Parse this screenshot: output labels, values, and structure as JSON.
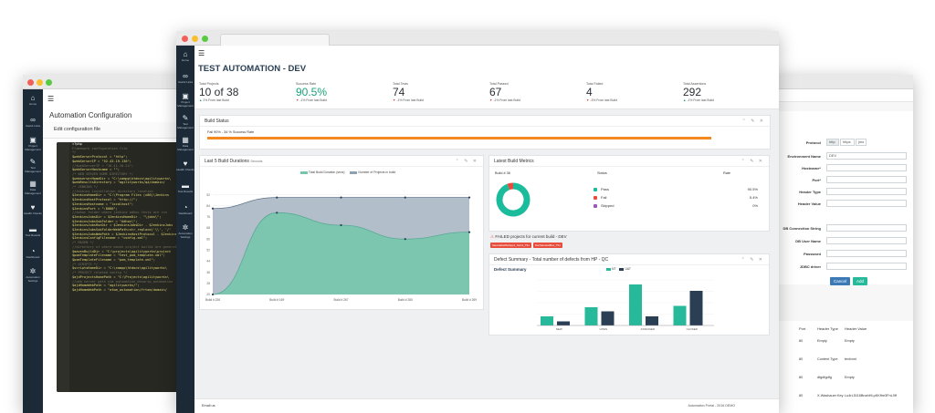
{
  "left_window": {
    "title": "Automation Configuration",
    "subtitle": "Edit configuration file",
    "sidebar": [
      {
        "icon": "home-icon",
        "label": "Home"
      },
      {
        "icon": "link-icon",
        "label": "Useful Links"
      },
      {
        "icon": "briefcase-icon",
        "label": "Project Management"
      },
      {
        "icon": "wrench-icon",
        "label": "Test Management"
      },
      {
        "icon": "table-icon",
        "label": "Data Management"
      },
      {
        "icon": "heart-icon",
        "label": "Health Checks"
      },
      {
        "icon": "folder-icon",
        "label": "Test Results"
      },
      {
        "icon": "dashboard-icon",
        "label": "Dashboard"
      },
      {
        "icon": "gears-icon",
        "label": "Automation Settings"
      }
    ],
    "code_lines": [
      {
        "t": "<?php",
        "c": "#f8f8f2"
      },
      {
        "t": "Framework configuration file",
        "c": "#75715e"
      },
      {
        "t": "*/",
        "c": "#75715e"
      },
      {
        "t": "$webServerProtocol = \"http\";",
        "c": "#e6db74"
      },
      {
        "t": "$webServerIP = \"52.43.19.136\";",
        "c": "#e6db74"
      },
      {
        "t": "//$webServerIP = \"10.41.20.24\";",
        "c": "#75715e"
      },
      {
        "t": "$webServerHostname = \"\";",
        "c": "#e6db74"
      },
      {
        "t": "",
        "c": "#f8f8f2"
      },
      {
        "t": "/* WEB SERVER HOME DIRECTORY */",
        "c": "#75715e"
      },
      {
        "t": "$webserverHomeDir = \"C:\\xampp\\htdocs\\agilityworks\\",
        "c": "#e6db74"
      },
      {
        "t": "$webResultsDirectory = \"agilityworks/qa/domain/",
        "c": "#e6db74"
      },
      {
        "t": "",
        "c": "#f8f8f2"
      },
      {
        "t": "/* JENKINS */",
        "c": "#75715e"
      },
      {
        "t": "//Jenkins installation directory location",
        "c": "#75715e"
      },
      {
        "t": "$JenkinsHomeDir = \"C:\\Program Files (x86)\\Jenkins",
        "c": "#e6db74"
      },
      {
        "t": "$JenkinsHostProtocol = \"http://\";",
        "c": "#e6db74"
      },
      {
        "t": "$JenkinsHostname = \"localhost\";",
        "c": "#e6db74"
      },
      {
        "t": "$JenkinsPort = \":8080\";",
        "c": "#e6db74"
      },
      {
        "t": "",
        "c": "#f8f8f2"
      },
      {
        "t": "//Adhoc folder where jenkins adhoc tests are run",
        "c": "#75715e"
      },
      {
        "t": "$JenkinsJobsDir = $JenkinsHomeDir . \"\\jobs\\\";",
        "c": "#e6db74"
      },
      {
        "t": "$JenkinsJobsSubFolder = \"Adhoc\\\";",
        "c": "#e6db74"
      },
      {
        "t": "$JenkinsJobsRunDir = $JenkinsJobsDir . $JenkinsJobs",
        "c": "#e6db74"
      },
      {
        "t": "",
        "c": "#f8f8f2"
      },
      {
        "t": "$JenkinsJobsSubFolderWebPath=str_replace('\\\\', '/'",
        "c": "#e6db74"
      },
      {
        "t": "",
        "c": "#f8f8f2"
      },
      {
        "t": "$JenkinsJobsWebPath = $JenkinsHostProtocol . $Jenkins",
        "c": "#e6db74"
      },
      {
        "t": "$JenkinsConfigFilename = \"config.xml\";",
        "c": "#e6db74"
      },
      {
        "t": "",
        "c": "#f8f8f2"
      },
      {
        "t": "/* MAVEN */",
        "c": "#75715e"
      },
      {
        "t": "//directory of where maven project builds are generated",
        "c": "#75715e"
      },
      {
        "t": "$mavenBuildDir = \"C:\\projects\\agilityworks\\project",
        "c": "#e6db74"
      },
      {
        "t": "$pomTemplateFilename = \"test_pom_template.xml\";",
        "c": "#e6db74"
      },
      {
        "t": "$pomTemplateFilename = \"pom_template.xml\";",
        "c": "#e6db74"
      },
      {
        "t": "",
        "c": "#f8f8f2"
      },
      {
        "t": "/* SCRIPTS */",
        "c": "#75715e"
      },
      {
        "t": "$scriptsHomeDir = \"C:\\xampp\\htdocs\\agilityworks\\",
        "c": "#e6db74"
      },
      {
        "t": "",
        "c": "#f8f8f2"
      },
      {
        "t": "/* PROJECT related config */",
        "c": "#75715e"
      },
      {
        "t": "$ajdProjectsHomePath = \"C:\\Projects\\agilityworks\\",
        "c": "#e6db74"
      },
      {
        "t": "",
        "c": "#f8f8f2"
      },
      {
        "t": "//web server path via automation_deswrip_automation",
        "c": "#75715e"
      },
      {
        "t": "$ajdHomeWebPath = \"agilityworks/\";",
        "c": "#e6db74"
      },
      {
        "t": "$ajdHomeWebPath = \"atom_automation/frtom/domain/",
        "c": "#e6db74"
      }
    ]
  },
  "right_window": {
    "protocol": {
      "label": "Protocol",
      "options": [
        "http",
        "https",
        "jms"
      ]
    },
    "fields": [
      {
        "label": "Environment Name",
        "value": "DEV"
      },
      {
        "label": "Hostname*",
        "value": ""
      },
      {
        "label": "Port*",
        "value": ""
      },
      {
        "label": "Header Type",
        "value": ""
      },
      {
        "label": "Header Value",
        "value": ""
      }
    ],
    "db_fields": [
      {
        "label": "DB Connection String",
        "value": ""
      },
      {
        "label": "DB User Name",
        "value": ""
      },
      {
        "label": "Password",
        "value": ""
      },
      {
        "label": "JDBC driver",
        "value": ""
      }
    ],
    "cancel_label": "Cancel",
    "add_label": "Add",
    "table": {
      "headers": [
        "Port",
        "Header Type",
        "Header Value"
      ],
      "rows": [
        {
          "port": "80",
          "type": "Empty",
          "value": "Empty"
        },
        {
          "port": "80",
          "type": "Content Type",
          "value": "text/xml"
        },
        {
          "port": "80",
          "type": "dfgdfgdfg",
          "value": "Empty"
        },
        {
          "port": "80",
          "type": "X-Washauer Key",
          "value": "Lu4rL5116BnahHLpKKfhe3FnL0ff"
        }
      ]
    }
  },
  "main_window": {
    "title": "TEST AUTOMATION - DEV",
    "sidebar": [
      {
        "icon": "home-icon",
        "label": "Home"
      },
      {
        "icon": "link-icon",
        "label": "Useful Links"
      },
      {
        "icon": "briefcase-icon",
        "label": "Project Management"
      },
      {
        "icon": "wrench-icon",
        "label": "Test Management"
      },
      {
        "icon": "table-icon",
        "label": "Data Management"
      },
      {
        "icon": "heart-icon",
        "label": "Health Checks"
      },
      {
        "icon": "folder-icon",
        "label": "Test Results"
      },
      {
        "icon": "dashboard-icon",
        "label": "Dashboard"
      },
      {
        "icon": "gears-icon",
        "label": "Automation Settings"
      }
    ],
    "stats": [
      {
        "title": "Total Projects",
        "value": "10 of 38",
        "sub": "2% From last Build",
        "dir": "up"
      },
      {
        "title": "Success Rate",
        "value": "90.5%",
        "sub": "-1% From last Build",
        "dir": "down",
        "accent": true
      },
      {
        "title": "Total Tests",
        "value": "74",
        "sub": "-1% From last Build",
        "dir": "down"
      },
      {
        "title": "Total Passed",
        "value": "67",
        "sub": "-1% From last Build",
        "dir": "down"
      },
      {
        "title": "Total Failed",
        "value": "4",
        "sub": "-3% From last Build",
        "dir": "down"
      },
      {
        "title": "Total Assertions",
        "value": "292",
        "sub": "-1% From last Build",
        "dir": "up"
      }
    ],
    "build_status": {
      "title": "Build Status",
      "text": "Fail 90% - 34 % Success Rate",
      "progress": 1.0,
      "color": "#f5871f"
    },
    "durations": {
      "title": "Last 5 Build Durations",
      "unit": "Seconds",
      "legend": [
        "Total Build Duration (secs)",
        "Number of Projects in build"
      ]
    },
    "latest": {
      "title": "Latest Build Metrics",
      "build": "Build # 36",
      "status_h": "Status",
      "rate_h": "Rate",
      "rows": [
        {
          "label": "Pass",
          "rate": "90.5%",
          "color": "#1abc9c"
        },
        {
          "label": "Fail",
          "rate": "5.4%",
          "color": "#e74c3c"
        },
        {
          "label": "Skipped",
          "rate": "0%",
          "color": "#9b59b6"
        }
      ]
    },
    "failed": {
      "title": "FAILED projects for current build - DEV",
      "badges": [
        "SaucelabsWebApp1_Sprint_TS1",
        "NonStandardBox_TS1"
      ]
    },
    "defect": {
      "title": "Defect Summary - Total number of defects from HP - QC",
      "chart_title": "Defect Summary",
      "legend": [
        "NT",
        "UAT"
      ]
    },
    "footer_left": "Email us",
    "footer_right": "Automation Portal - 2016 DEMO"
  },
  "chart_data": [
    {
      "type": "area",
      "title": "Last 5 Build Durations",
      "categories": [
        "Build # 226",
        "Build # 169",
        "Build # 267",
        "Build # 280",
        "Build # 269"
      ],
      "series": [
        {
          "name": "Total Build Duration (secs)",
          "values": [
            20,
            79,
            70,
            60,
            65
          ]
        },
        {
          "name": "Number of Projects in build",
          "values": [
            82,
            90,
            90,
            90,
            90
          ]
        }
      ],
      "ylim": [
        20,
        95
      ],
      "yticks": [
        20,
        28,
        36,
        44,
        52,
        60,
        68,
        76,
        84,
        92
      ]
    },
    {
      "type": "pie",
      "title": "Latest Build Metrics",
      "categories": [
        "Pass",
        "Fail",
        "Skipped"
      ],
      "values": [
        90.5,
        5.4,
        0
      ]
    },
    {
      "type": "bar",
      "title": "Defect Summary",
      "categories": [
        "NEW",
        "OPEN",
        "ASSIGNED",
        "CLOSED"
      ],
      "series": [
        {
          "name": "NT",
          "values": [
            20,
            40,
            90,
            43
          ]
        },
        {
          "name": "UAT",
          "values": [
            9,
            31,
            20,
            76
          ]
        }
      ],
      "ylim": [
        0,
        100
      ]
    }
  ]
}
